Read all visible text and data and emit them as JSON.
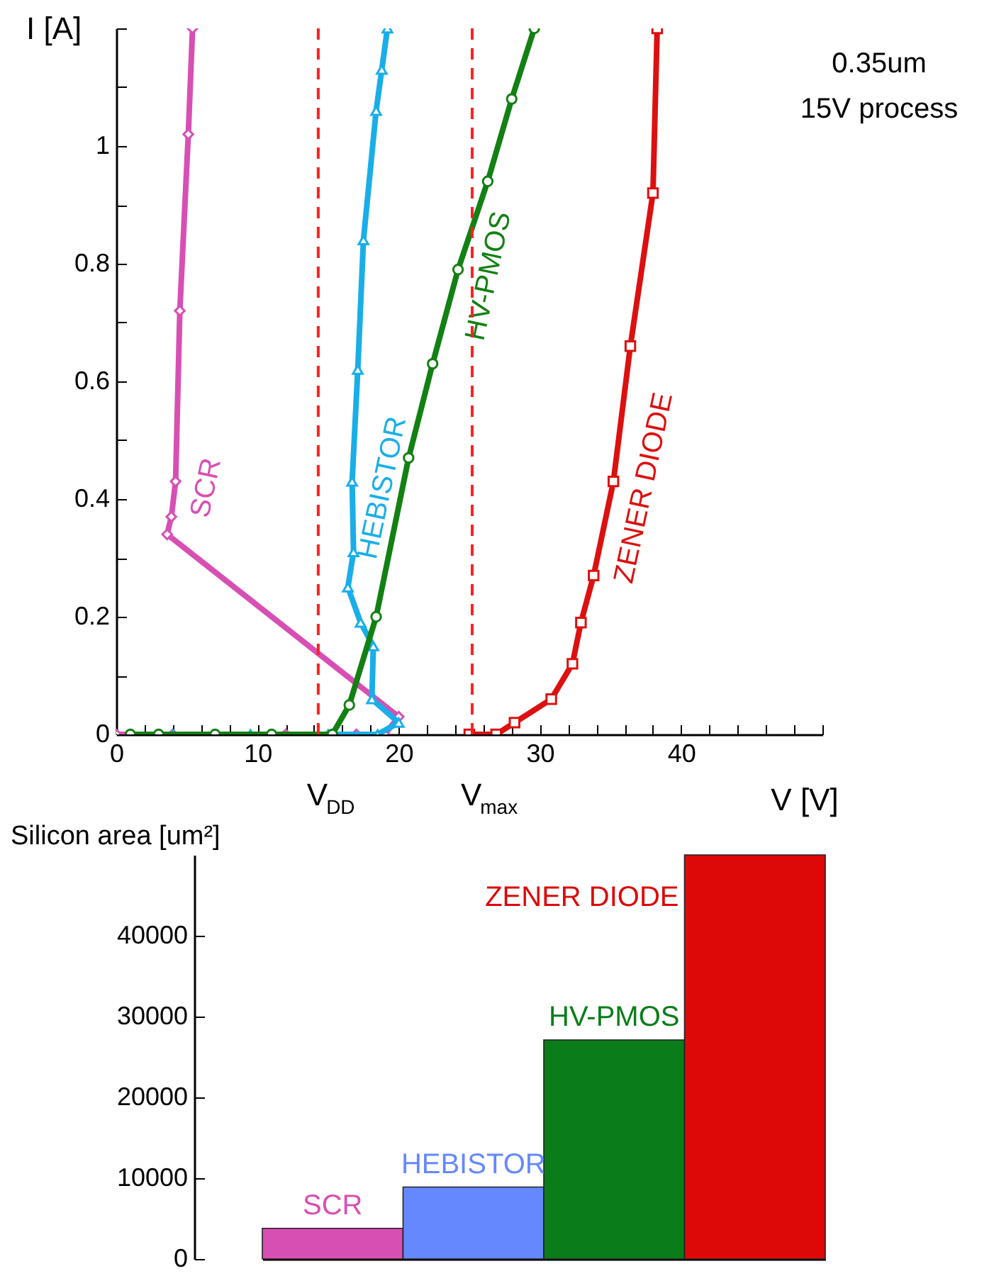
{
  "chart_data": [
    {
      "type": "line",
      "xlabel": "V [V]",
      "ylabel": "I [A]",
      "xlim": [
        0,
        50
      ],
      "xticks": [
        0,
        {
          "value": 2,
          "label": null
        },
        {
          "value": 4,
          "label": null
        },
        {
          "value": 6,
          "label": null
        },
        {
          "value": 8,
          "label": null
        },
        10,
        {
          "value": 12,
          "label": null
        },
        {
          "value": 14,
          "label": null
        },
        {
          "value": 16,
          "label": null
        },
        {
          "value": 18,
          "label": null
        },
        20,
        {
          "value": 22,
          "label": null
        },
        {
          "value": 24,
          "label": null
        },
        {
          "value": 26,
          "label": null
        },
        {
          "value": 28,
          "label": null
        },
        30,
        {
          "value": 32,
          "label": null
        },
        {
          "value": 34,
          "label": null
        },
        {
          "value": 36,
          "label": null
        },
        {
          "value": 38,
          "label": null
        },
        40,
        {
          "value": 42,
          "label": null
        },
        {
          "value": 44,
          "label": null
        },
        {
          "value": 46,
          "label": null
        },
        {
          "value": 48,
          "label": null
        },
        {
          "value": 50,
          "label": null
        }
      ],
      "ylim": [
        0,
        1.2
      ],
      "yticks": [
        0,
        {
          "value": 0.1,
          "label": null
        },
        0.2,
        {
          "value": 0.3,
          "label": null
        },
        0.4,
        {
          "value": 0.5,
          "label": null
        },
        0.6,
        {
          "value": 0.7,
          "label": null
        },
        0.8,
        {
          "value": 0.9,
          "label": null
        },
        1,
        {
          "value": 1.1,
          "label": null
        },
        {
          "value": 1.2,
          "label": null
        }
      ],
      "line_style": "solid",
      "series": [
        {
          "name": "SCR",
          "color": "#d84fb4",
          "marker": "diamond",
          "x": [
            0,
            4,
            12,
            17,
            19,
            20,
            3.6,
            3.9,
            4.2,
            4.5,
            5.1,
            5.4
          ],
          "values": [
            0,
            0,
            0,
            0,
            0,
            0.03,
            0.34,
            0.37,
            0.43,
            0.72,
            1.02,
            1.2
          ]
        },
        {
          "name": "HEBISTOR",
          "color": "#1aaee8",
          "marker": "triangle",
          "x": [
            1,
            4,
            9.5,
            15,
            18.5,
            20,
            18.1,
            18.2,
            17.3,
            16.4,
            16.8,
            16.7,
            17.1,
            17.5,
            18.4,
            18.8,
            19.2
          ],
          "values": [
            0,
            0,
            0,
            0,
            0,
            0.02,
            0.06,
            0.15,
            0.19,
            0.25,
            0.31,
            0.43,
            0.62,
            0.84,
            1.06,
            1.13,
            1.2
          ]
        },
        {
          "name": "HV-PMOS",
          "color": "#138013",
          "marker": "circle",
          "x": [
            1,
            3,
            7,
            11,
            15.3,
            16.5,
            18.4,
            20.7,
            22.4,
            24.2,
            26.3,
            28.0,
            29.6
          ],
          "values": [
            0,
            0,
            0,
            0,
            0,
            0.05,
            0.2,
            0.47,
            0.63,
            0.79,
            0.94,
            1.08,
            1.2
          ]
        },
        {
          "name": "ZENER DIODE",
          "color": "#dd1010",
          "marker": "square",
          "x": [
            25,
            26.9,
            28.2,
            30.8,
            32.3,
            32.9,
            33.8,
            35.2,
            36.4,
            38.0,
            38.3
          ],
          "values": [
            0,
            0,
            0.02,
            0.06,
            0.12,
            0.19,
            0.27,
            0.43,
            0.66,
            0.92,
            1.2
          ]
        }
      ],
      "ref_lines": [
        {
          "axis": "x",
          "value": 14.3,
          "label": "V$_{DD}$",
          "color": "#ff2020",
          "line_style": "dashed"
        },
        {
          "axis": "x",
          "value": 25.2,
          "label": "V$_{max}$",
          "color": "#ff2020",
          "line_style": "dashed"
        }
      ],
      "annotations": [
        "0.35um",
        "15V process"
      ]
    },
    {
      "type": "bar",
      "ylabel": "Silicon area [um²]",
      "tick_labels": "y",
      "stacked": true,
      "categories": [
        null,
        null,
        null,
        null
      ],
      "series": [
        {
          "name": "SCR",
          "color": "#d84fb4",
          "values": [
            3800,
            null,
            null,
            null
          ]
        },
        {
          "name": "HEBISTOR",
          "color": "#6688ff",
          "values": [
            null,
            8900,
            null,
            null
          ]
        },
        {
          "name": "HV-PMOS",
          "color": "#0a7d1a",
          "values": [
            null,
            null,
            27100,
            null
          ]
        },
        {
          "name": "ZENER DIODE",
          "color": "#dd0808",
          "values": [
            null,
            null,
            null,
            50000
          ]
        }
      ],
      "ylim": [
        0,
        50000
      ],
      "yticks": [
        0,
        10000,
        20000,
        30000,
        40000
      ]
    }
  ]
}
